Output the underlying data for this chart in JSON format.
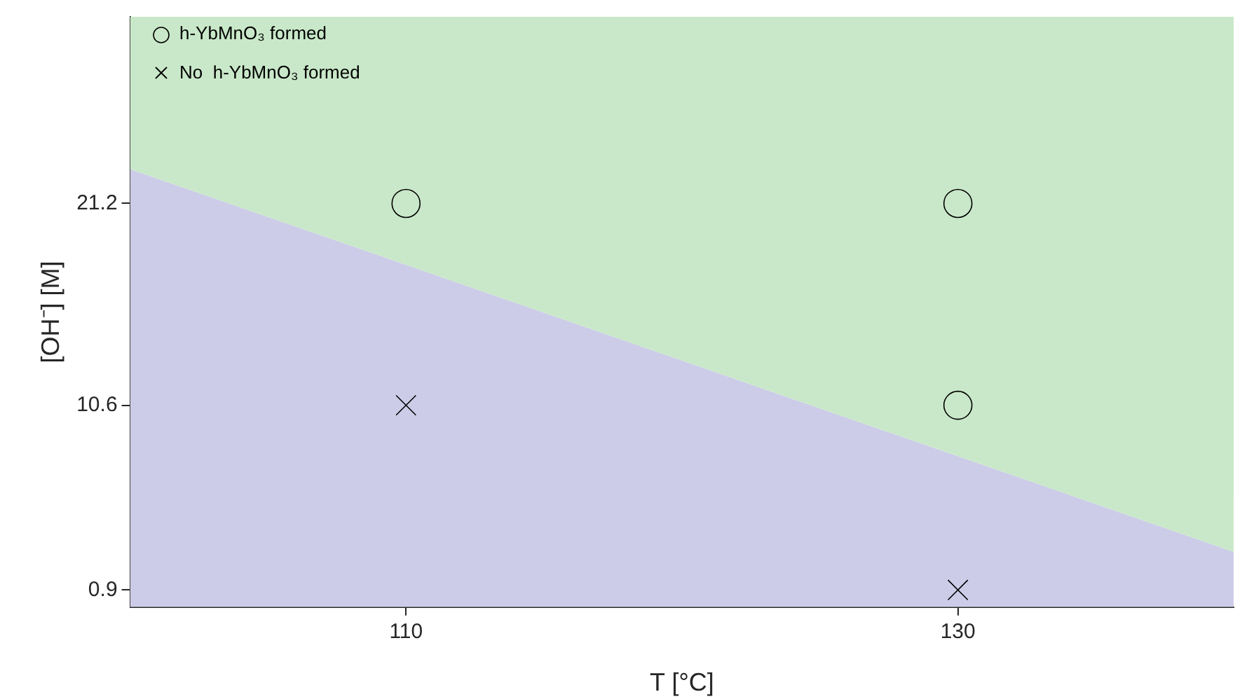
{
  "chart_data": {
    "type": "scatter",
    "xlabel": "T [°C]",
    "ylabel": "[OH⁻] [M]",
    "xlim": [
      100,
      140
    ],
    "ylim": [
      0,
      31
    ],
    "xticks": [
      110,
      130
    ],
    "yticks": [
      0.9,
      10.6,
      21.2
    ],
    "grid": false,
    "stacked": true,
    "legend": "top left",
    "series": [
      {
        "type": "area",
        "color": "#cccce8",
        "x": [
          100,
          140
        ],
        "values": [
          23,
          2.9
        ]
      },
      {
        "type": "area",
        "color": "#c9e8c9",
        "x": [
          100,
          140
        ],
        "values": [
          8,
          28.1
        ]
      },
      {
        "type": "scatter",
        "name": "h-YbMnO₃ formed",
        "color": "#000000",
        "marker": "circle",
        "x": [
          110,
          130,
          130
        ],
        "values": [
          21.2,
          21.2,
          10.6
        ]
      },
      {
        "type": "scatter",
        "name": "No  h-YbMnO₃ formed",
        "color": "#000000",
        "marker": "cross",
        "x": [
          110,
          130
        ],
        "values": [
          10.6,
          0.9
        ]
      }
    ]
  }
}
